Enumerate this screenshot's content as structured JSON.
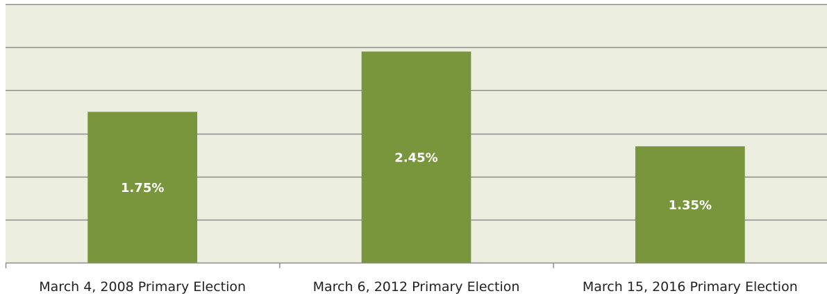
{
  "chart_data": {
    "type": "bar",
    "categories": [
      "March 4, 2008 Primary Election",
      "March 6, 2012 Primary Election",
      "March 15, 2016 Primary Election"
    ],
    "values": [
      1.75,
      2.45,
      1.35
    ],
    "data_labels": [
      "1.75%",
      "2.45%",
      "1.35%"
    ],
    "title": "",
    "xlabel": "",
    "ylabel": "",
    "ylim": [
      0,
      3.0
    ],
    "y_gridline_step": 0.5,
    "grid": true,
    "y_tick_labels_visible": false,
    "legend": "none"
  },
  "colors": {
    "plot_background": "#ecefe0",
    "bar": "#7a963c",
    "gridline": "#8a8a8a",
    "axis": "#8a8a8a",
    "data_label": "#ffffff",
    "category_label": "#222222"
  }
}
